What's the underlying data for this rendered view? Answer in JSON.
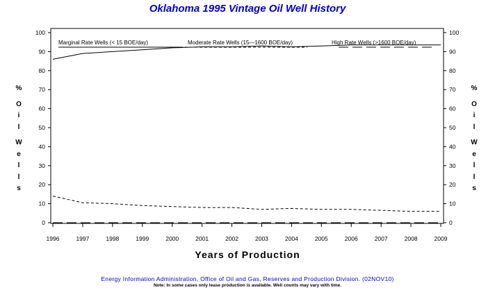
{
  "chart_data": {
    "type": "line",
    "title": "Oklahoma 1995 Vintage Oil Well History",
    "xlabel": "Years of Production",
    "ylabel": "% Oil Wells",
    "xlim": [
      1996,
      2009
    ],
    "ylim": [
      0,
      100
    ],
    "x_ticks": [
      "1996",
      "1997",
      "1998",
      "1999",
      "2000",
      "2001",
      "2002",
      "2003",
      "2004",
      "2005",
      "2006",
      "2007",
      "2008",
      "2009"
    ],
    "y_ticks": [
      "0",
      "10",
      "20",
      "30",
      "40",
      "50",
      "60",
      "70",
      "80",
      "90",
      "100"
    ],
    "grid": false,
    "legend_position": "top",
    "series": [
      {
        "name": "Marginal Rate Wells (<  15 BOE/day)",
        "style": "solid",
        "x": [
          1996,
          1997,
          1998,
          1999,
          2000,
          2001,
          2002,
          2003,
          2004,
          2005,
          2006,
          2007,
          2008,
          2009
        ],
        "values": [
          86,
          89,
          90,
          91,
          92,
          92.5,
          92.5,
          93,
          92.5,
          93,
          93.5,
          93.5,
          93.5,
          93.5
        ]
      },
      {
        "name": "Moderate Rate Wells (15—1600 BOE/day)",
        "style": "dashed",
        "x": [
          1996,
          1997,
          1998,
          1999,
          2000,
          2001,
          2002,
          2003,
          2004,
          2005,
          2006,
          2007,
          2008,
          2009
        ],
        "values": [
          14,
          10.5,
          10,
          9,
          8.5,
          8,
          8,
          7,
          7.5,
          7,
          7,
          6.5,
          6,
          6
        ]
      },
      {
        "name": "High Rate Wells (>1600 BOE/day)",
        "style": "long-dashed",
        "x": [
          1996,
          1997,
          1998,
          1999,
          2000,
          2001,
          2002,
          2003,
          2004,
          2005,
          2006,
          2007,
          2008,
          2009
        ],
        "values": [
          0,
          0,
          0,
          0,
          0,
          0,
          0,
          0,
          0,
          0,
          0,
          0,
          0,
          0
        ]
      }
    ]
  },
  "ylabel_chars": [
    "%",
    "O",
    "i",
    "l",
    "W",
    "e",
    "l",
    "l",
    "s"
  ],
  "source": "Energy Information Administration, Office of Oil and Gas, Reserves and Production Division. (02NOV10)",
  "note": "Note: In some cases only lease production is available. Well counts may vary with time.",
  "colors": {
    "title": "#0000cc",
    "source": "#0000cc",
    "axis": "#000000"
  }
}
